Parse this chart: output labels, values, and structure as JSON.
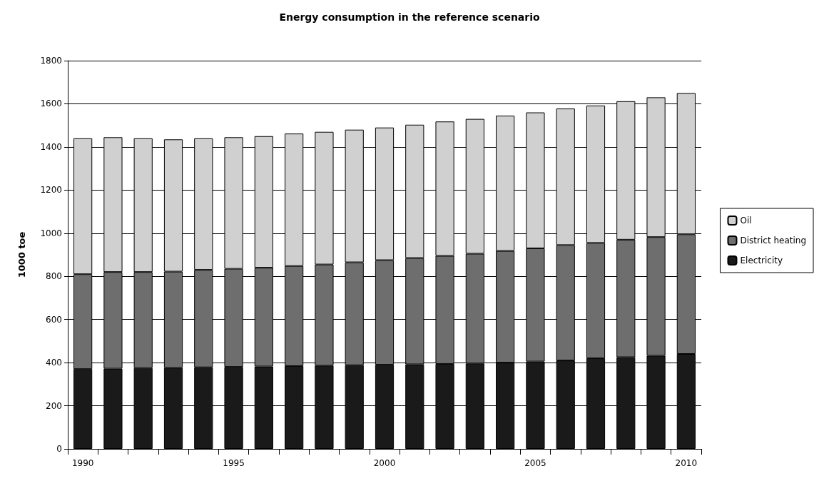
{
  "chart_data": {
    "type": "bar",
    "title": "Energy consumption in the reference scenario",
    "ylabel": "1000 toe",
    "categories": [
      "1990",
      null,
      null,
      null,
      null,
      "1995",
      null,
      null,
      null,
      null,
      "2000",
      null,
      null,
      null,
      null,
      "2005",
      null,
      null,
      null,
      null,
      "2010"
    ],
    "stacked": true,
    "series": [
      {
        "name": "Electricity",
        "color": "#1a1a1a",
        "values": [
          370,
          372,
          375,
          376,
          378,
          380,
          382,
          384,
          386,
          388,
          390,
          392,
          394,
          396,
          400,
          405,
          410,
          420,
          425,
          432,
          440
        ]
      },
      {
        "name": "District heating",
        "color": "#6e6e6e",
        "values": [
          440,
          448,
          445,
          446,
          452,
          455,
          458,
          464,
          469,
          477,
          485,
          493,
          501,
          509,
          518,
          525,
          535,
          535,
          545,
          550,
          555
        ]
      },
      {
        "name": "Oil",
        "color": "#d0d0d0",
        "values": [
          630,
          625,
          620,
          613,
          610,
          610,
          610,
          614,
          615,
          615,
          615,
          618,
          623,
          625,
          627,
          630,
          633,
          637,
          642,
          648,
          655
        ]
      }
    ],
    "ylim": [
      0,
      1800
    ],
    "yticks": [
      0,
      200,
      400,
      600,
      800,
      1000,
      1200,
      1400,
      1600,
      1800
    ],
    "grid": "y",
    "legend": "right"
  }
}
